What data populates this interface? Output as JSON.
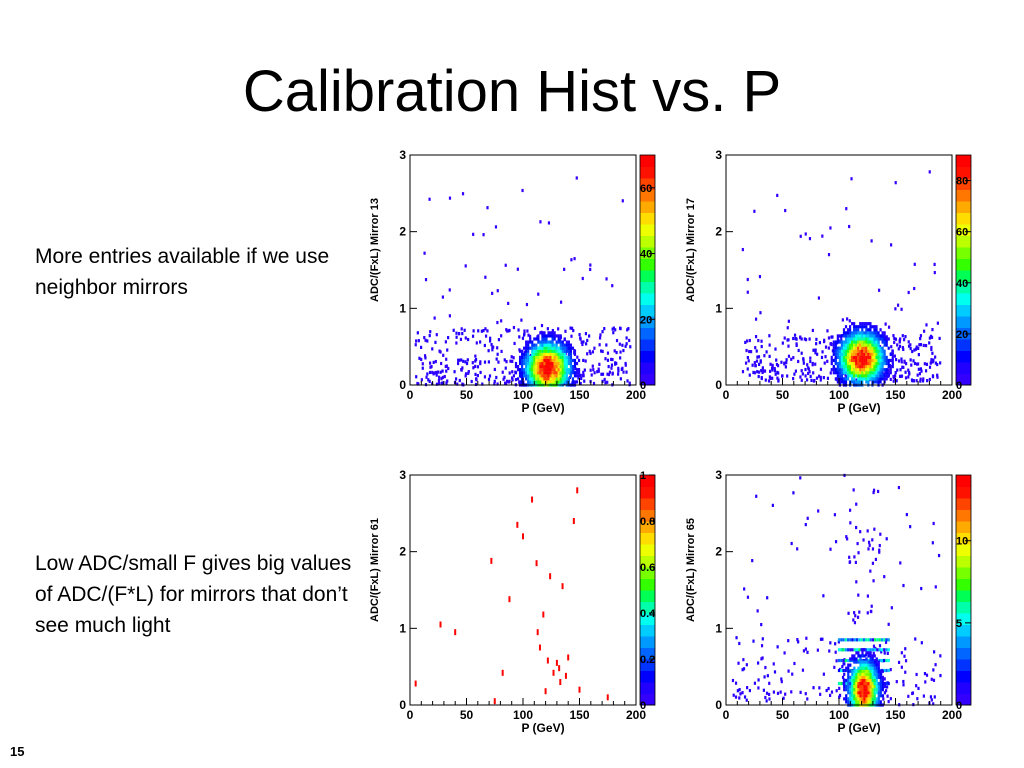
{
  "slide": {
    "title": "Calibration Hist vs. P",
    "note_top": "More entries available if we use neighbor mirrors",
    "note_bottom": "Low ADC/small F gives big values of ADC/(F*L) for mirrors that don’t see much light",
    "slide_number": "15"
  },
  "chart_data": [
    {
      "type": "heatmap",
      "xlabel": "P (GeV)",
      "ylabel": "ADC/(FxL) Mirror 13",
      "xlim": [
        0,
        200
      ],
      "ylim": [
        0,
        3
      ],
      "x_ticks": [
        "0",
        "50",
        "100",
        "150",
        "200"
      ],
      "y_ticks": [
        "0",
        "1",
        "2",
        "3"
      ],
      "z_range": [
        0,
        70
      ],
      "z_ticks": [
        "0",
        "20",
        "40",
        "60"
      ],
      "core": {
        "x": 122,
        "y": 0.22,
        "peak": 70
      },
      "scatter_x_range": [
        5,
        195
      ],
      "scatter_y_range": [
        0,
        0.75
      ]
    },
    {
      "type": "heatmap",
      "xlabel": "P (GeV)",
      "ylabel": "ADC/(FxL) Mirror 17",
      "xlim": [
        0,
        200
      ],
      "ylim": [
        0,
        3
      ],
      "x_ticks": [
        "0",
        "50",
        "100",
        "150",
        "200"
      ],
      "y_ticks": [
        "0",
        "1",
        "2",
        "3"
      ],
      "z_range": [
        0,
        90
      ],
      "z_ticks": [
        "0",
        "20",
        "40",
        "60",
        "80"
      ],
      "core": {
        "x": 120,
        "y": 0.35,
        "peak": 90
      },
      "scatter_x_range": [
        15,
        190
      ],
      "scatter_y_range": [
        0.05,
        0.65
      ]
    },
    {
      "type": "heatmap",
      "xlabel": "P (GeV)",
      "ylabel": "ADC/(FxL) Mirror 61",
      "xlim": [
        0,
        200
      ],
      "ylim": [
        0,
        3
      ],
      "x_ticks": [
        "0",
        "50",
        "100",
        "150",
        "200"
      ],
      "y_ticks": [
        "0",
        "1",
        "2",
        "3"
      ],
      "z_range": [
        0,
        1
      ],
      "z_ticks": [
        "0",
        "0.2",
        "0.4",
        "0.6",
        "0.8",
        "1"
      ],
      "points": [
        [
          5,
          0.28
        ],
        [
          27,
          1.05
        ],
        [
          40,
          0.95
        ],
        [
          72,
          1.88
        ],
        [
          75,
          0.05
        ],
        [
          82,
          0.42
        ],
        [
          88,
          1.38
        ],
        [
          95,
          2.35
        ],
        [
          100,
          2.2
        ],
        [
          108,
          2.68
        ],
        [
          112,
          1.85
        ],
        [
          113,
          0.95
        ],
        [
          115,
          0.75
        ],
        [
          118,
          1.18
        ],
        [
          120,
          0.18
        ],
        [
          122,
          0.58
        ],
        [
          124,
          1.68
        ],
        [
          127,
          0.42
        ],
        [
          130,
          0.55
        ],
        [
          132,
          0.48
        ],
        [
          133,
          0.3
        ],
        [
          135,
          1.55
        ],
        [
          138,
          0.38
        ],
        [
          140,
          0.62
        ],
        [
          145,
          2.4
        ],
        [
          148,
          2.8
        ],
        [
          150,
          0.2
        ],
        [
          175,
          0.1
        ]
      ]
    },
    {
      "type": "heatmap",
      "xlabel": "P (GeV)",
      "ylabel": "ADC/(FxL) Mirror 65",
      "xlim": [
        0,
        200
      ],
      "ylim": [
        0,
        3
      ],
      "x_ticks": [
        "0",
        "50",
        "100",
        "150",
        "200"
      ],
      "y_ticks": [
        "0",
        "1",
        "2",
        "3"
      ],
      "z_range": [
        0,
        14
      ],
      "z_ticks": [
        "0",
        "5",
        "10"
      ],
      "core": {
        "x": 122,
        "y": 0.2,
        "peak": 14
      },
      "bands_y": [
        0.28,
        0.45,
        0.58,
        0.72,
        0.85
      ],
      "scatter_x_range": [
        5,
        190
      ],
      "scatter_y_range": [
        0,
        3
      ]
    }
  ]
}
